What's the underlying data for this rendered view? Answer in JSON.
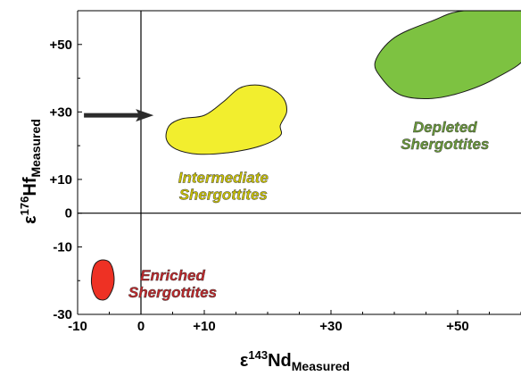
{
  "chart_data": {
    "type": "scatter",
    "xlabel": {
      "prefix": "ε",
      "sup": "143",
      "main": "Nd",
      "sub": "Measured"
    },
    "ylabel": {
      "prefix": "ε",
      "sup": "176",
      "main": "Hf",
      "sub": "Measured"
    },
    "xlim": [
      -10,
      60
    ],
    "ylim": [
      -30,
      60
    ],
    "x_ticks": [
      {
        "value": -10,
        "label": "-10"
      },
      {
        "value": 0,
        "label": "0"
      },
      {
        "value": 10,
        "label": "+10"
      },
      {
        "value": 30,
        "label": "+30"
      },
      {
        "value": 50,
        "label": "+50"
      }
    ],
    "y_ticks": [
      {
        "value": -30,
        "label": "-30"
      },
      {
        "value": -10,
        "label": "-10"
      },
      {
        "value": 0,
        "label": "0"
      },
      {
        "value": 10,
        "label": "+10"
      },
      {
        "value": 30,
        "label": "+30"
      },
      {
        "value": 50,
        "label": "+50"
      }
    ],
    "grid": false,
    "reference_lines": {
      "x": 0,
      "y": 0
    },
    "regions": [
      {
        "name": "Enriched Shergottites",
        "label_lines": [
          "Enriched",
          "Shergottites"
        ],
        "color": "#ee3124",
        "text_color": "#c0282b",
        "outline": [
          [
            -6.5,
            -14
          ],
          [
            -5,
            -14.5
          ],
          [
            -4.3,
            -18
          ],
          [
            -4.4,
            -22
          ],
          [
            -5.5,
            -25.5
          ],
          [
            -7,
            -25
          ],
          [
            -7.8,
            -21
          ],
          [
            -7.5,
            -16
          ]
        ],
        "label_at": [
          5,
          -20
        ]
      },
      {
        "name": "Intermediate Shergottites",
        "label_lines": [
          "Intermediate",
          "Shergottites"
        ],
        "color": "#f2ee2e",
        "text_color": "#c9c100",
        "outline": [
          [
            4,
            22
          ],
          [
            5.5,
            19
          ],
          [
            9,
            17.5
          ],
          [
            14,
            18
          ],
          [
            19,
            20
          ],
          [
            22,
            23
          ],
          [
            22,
            26
          ],
          [
            23,
            30
          ],
          [
            22.5,
            34
          ],
          [
            20.5,
            37
          ],
          [
            18,
            38
          ],
          [
            15.5,
            37
          ],
          [
            13,
            33
          ],
          [
            10,
            29
          ],
          [
            6.5,
            28
          ],
          [
            4.5,
            26
          ]
        ],
        "label_at": [
          13,
          9
        ]
      },
      {
        "name": "Depleted Shergottites",
        "label_lines": [
          "Depleted",
          "Shergottites"
        ],
        "color": "#7dc241",
        "text_color": "#6a9a3a",
        "outline": [
          [
            37,
            45
          ],
          [
            40,
            52
          ],
          [
            46,
            57
          ],
          [
            51,
            60
          ],
          [
            61,
            60
          ],
          [
            61,
            47
          ],
          [
            56,
            40
          ],
          [
            51,
            36
          ],
          [
            46,
            34
          ],
          [
            41,
            35
          ],
          [
            38,
            40
          ]
        ],
        "label_at": [
          48,
          24
        ]
      }
    ],
    "annotations": [
      {
        "type": "arrow",
        "from": [
          -9,
          29
        ],
        "to": [
          2,
          29
        ],
        "color": "#2b2b2b"
      }
    ]
  }
}
